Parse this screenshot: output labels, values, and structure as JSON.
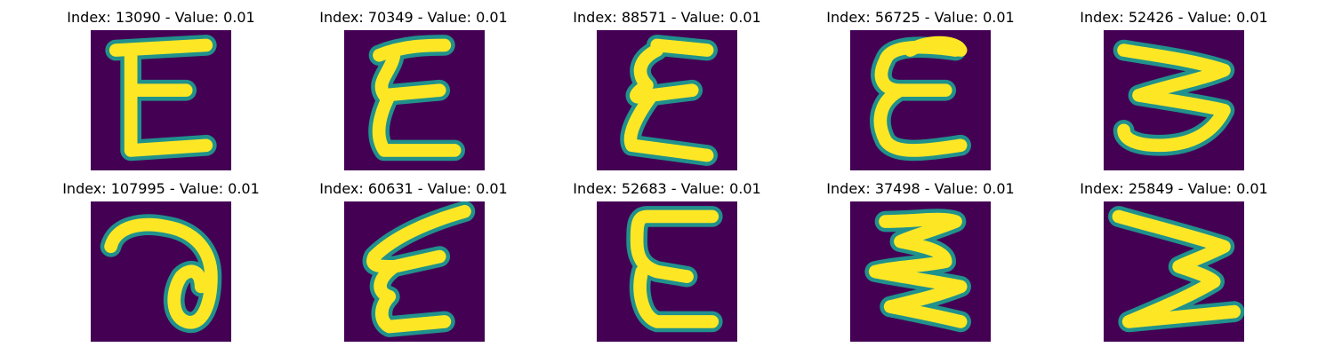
{
  "colors": {
    "background": "#440154",
    "edge": "#21918c",
    "stroke": "#fde725",
    "page": "#ffffff"
  },
  "panels": [
    {
      "title": "Index: 13090 - Value: 0.01",
      "glyph": "E-straight"
    },
    {
      "title": "Index: 70349 - Value: 0.01",
      "glyph": "E-cursive"
    },
    {
      "title": "Index: 88571 - Value: 0.01",
      "glyph": "E-cursive-2"
    },
    {
      "title": "Index: 56725 - Value: 0.01",
      "glyph": "epsilon"
    },
    {
      "title": "Index: 52426 - Value: 0.01",
      "glyph": "three-open"
    },
    {
      "title": "Index: 107995 - Value: 0.01",
      "glyph": "loop"
    },
    {
      "title": "Index: 60631 - Value: 0.01",
      "glyph": "E-slanted"
    },
    {
      "title": "Index: 52683 - Value: 0.01",
      "glyph": "E-round"
    },
    {
      "title": "Index: 37498 - Value: 0.01",
      "glyph": "E-zigzag"
    },
    {
      "title": "Index: 25849 - Value: 0.01",
      "glyph": "E-flipped"
    }
  ]
}
